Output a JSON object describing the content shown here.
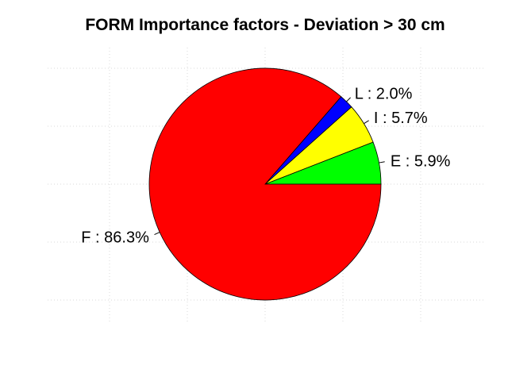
{
  "chart_data": {
    "type": "pie",
    "title": "FORM Importance factors - Deviation > 30 cm",
    "slices": [
      {
        "name": "E",
        "value": 5.9,
        "label": "E : 5.9%",
        "color": "#00ff00"
      },
      {
        "name": "I",
        "value": 5.7,
        "label": "I : 5.7%",
        "color": "#ffff00"
      },
      {
        "name": "L",
        "value": 2.0,
        "label": "L : 2.0%",
        "color": "#0000ff"
      },
      {
        "name": "F",
        "value": 86.3,
        "label": "F : 86.3%",
        "color": "#ff0000"
      }
    ],
    "start": "counter-clockwise from 3 o'clock",
    "grid": true
  }
}
